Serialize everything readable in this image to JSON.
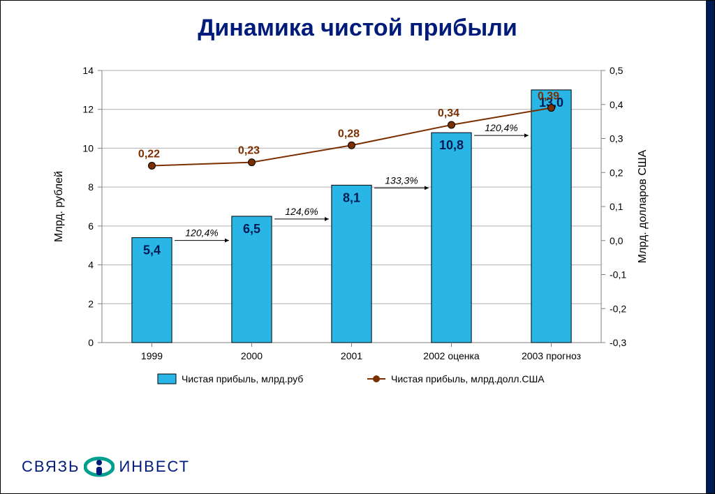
{
  "title": "Динамика чистой прибыли",
  "chart": {
    "type": "bar+line",
    "background_color": "#ffffff",
    "plot_bg": "#ffffff",
    "grid_color": "#b0b0b0",
    "axis_color": "#808080",
    "categories": [
      "1999",
      "2000",
      "2001",
      "2002 оценка",
      "2003 прогноз"
    ],
    "bars": {
      "values": [
        5.4,
        6.5,
        8.1,
        10.8,
        13.0
      ],
      "labels": [
        "5,4",
        "6,5",
        "8,1",
        "10,8",
        "13,0"
      ],
      "fill": "#29b6e6",
      "stroke": "#000000",
      "width": 0.4,
      "label_color": "#001b52",
      "label_fontsize": 18
    },
    "line": {
      "values": [
        0.22,
        0.23,
        0.28,
        0.34,
        0.39
      ],
      "labels": [
        "0,22",
        "0,23",
        "0,28",
        "0,34",
        "0,39"
      ],
      "stroke": "#7b2e00",
      "stroke_width": 2,
      "marker": {
        "shape": "circle",
        "r": 5,
        "fill": "#7b2e00",
        "stroke": "#000000"
      },
      "label_color": "#7b2e00",
      "label_fontsize": 16
    },
    "growth_labels": [
      "120,4%",
      "124,6%",
      "133,3%",
      "120,4%"
    ],
    "y_left": {
      "title": "Млрд. рублей",
      "min": 0,
      "max": 14,
      "step": 2,
      "ticks": [
        "0",
        "2",
        "4",
        "6",
        "8",
        "10",
        "12",
        "14"
      ]
    },
    "y_right": {
      "title": "Млрд. долларов США",
      "min": -0.3,
      "max": 0.5,
      "step": 0.1,
      "ticks": [
        "-0,3",
        "-0,2",
        "-0,1",
        "0,0",
        "0,1",
        "0,2",
        "0,3",
        "0,4",
        "0,5"
      ]
    },
    "legend": {
      "bar": "Чистая прибыль, млрд.руб",
      "line": "Чистая прибыль, млрд.долл.США"
    },
    "title_fontsize": 34,
    "axis_label_fontsize": 16,
    "tick_fontsize": 14
  },
  "logo": {
    "left": "СВЯЗЬ",
    "right": "ИНВЕСТ"
  }
}
